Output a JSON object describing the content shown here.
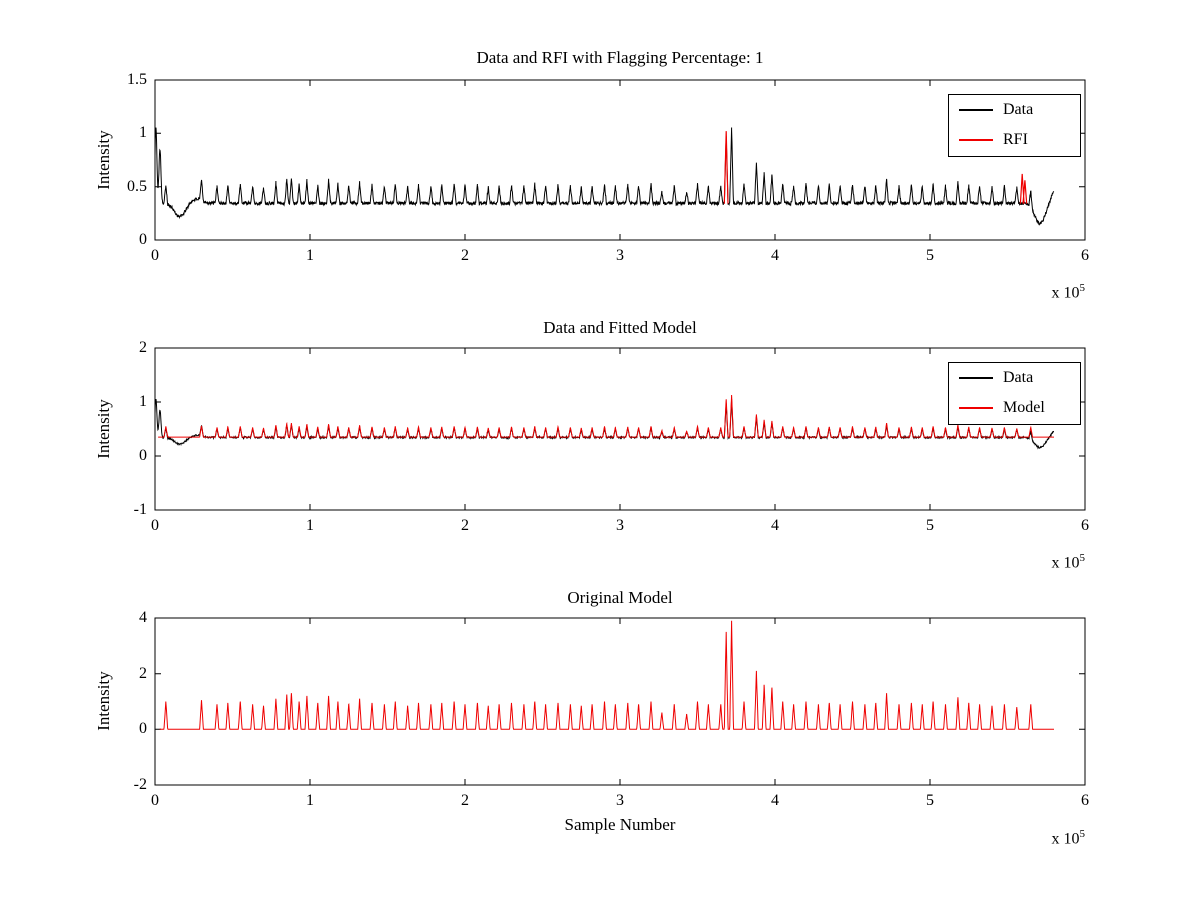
{
  "figure": {
    "background": "#ffffff"
  },
  "chart_data": {
    "type": "line",
    "layout": "3 stacked subplots sharing x axis, MATLAB-style figure",
    "x_range": [
      0,
      6
    ],
    "x_tick_values": [
      0,
      1,
      2,
      3,
      4,
      5,
      6
    ],
    "x_tick_labels": [
      "0",
      "1",
      "2",
      "3",
      "4",
      "5",
      "6"
    ],
    "exponent_prefix": "x 10",
    "exponent": "5",
    "x_data_end": 5.8,
    "colors": {
      "data": "#000000",
      "rfi": "#ef0000",
      "model": "#ef0000",
      "axis": "#000000"
    },
    "spike_half_width": 0.012,
    "model_spikes": [
      [
        0.07,
        1.0
      ],
      [
        0.3,
        1.05
      ],
      [
        0.4,
        0.9
      ],
      [
        0.47,
        0.95
      ],
      [
        0.55,
        1.0
      ],
      [
        0.63,
        0.9
      ],
      [
        0.7,
        0.85
      ],
      [
        0.78,
        1.1
      ],
      [
        0.85,
        1.25
      ],
      [
        0.88,
        1.3
      ],
      [
        0.93,
        1.0
      ],
      [
        0.98,
        1.2
      ],
      [
        1.05,
        0.95
      ],
      [
        1.12,
        1.2
      ],
      [
        1.18,
        1.0
      ],
      [
        1.25,
        0.9
      ],
      [
        1.32,
        1.1
      ],
      [
        1.4,
        0.95
      ],
      [
        1.48,
        0.9
      ],
      [
        1.55,
        1.0
      ],
      [
        1.63,
        0.85
      ],
      [
        1.7,
        0.95
      ],
      [
        1.78,
        0.9
      ],
      [
        1.85,
        0.95
      ],
      [
        1.93,
        1.0
      ],
      [
        2.0,
        0.9
      ],
      [
        2.08,
        0.95
      ],
      [
        2.15,
        0.85
      ],
      [
        2.22,
        0.9
      ],
      [
        2.3,
        0.95
      ],
      [
        2.38,
        0.9
      ],
      [
        2.45,
        1.0
      ],
      [
        2.52,
        0.9
      ],
      [
        2.6,
        0.95
      ],
      [
        2.68,
        0.9
      ],
      [
        2.75,
        0.85
      ],
      [
        2.82,
        0.9
      ],
      [
        2.9,
        1.0
      ],
      [
        2.97,
        0.9
      ],
      [
        3.05,
        0.95
      ],
      [
        3.12,
        0.9
      ],
      [
        3.2,
        1.0
      ],
      [
        3.27,
        0.6
      ],
      [
        3.35,
        0.9
      ],
      [
        3.43,
        0.55
      ],
      [
        3.5,
        1.0
      ],
      [
        3.57,
        0.9
      ],
      [
        3.65,
        0.9
      ],
      [
        3.685,
        3.5
      ],
      [
        3.72,
        3.9
      ],
      [
        3.8,
        1.0
      ],
      [
        3.88,
        2.1
      ],
      [
        3.93,
        1.6
      ],
      [
        3.98,
        1.5
      ],
      [
        4.05,
        1.0
      ],
      [
        4.12,
        0.9
      ],
      [
        4.2,
        1.0
      ],
      [
        4.28,
        0.9
      ],
      [
        4.35,
        0.95
      ],
      [
        4.42,
        0.9
      ],
      [
        4.5,
        1.0
      ],
      [
        4.58,
        0.9
      ],
      [
        4.65,
        0.95
      ],
      [
        4.72,
        1.3
      ],
      [
        4.8,
        0.9
      ],
      [
        4.88,
        0.95
      ],
      [
        4.95,
        0.9
      ],
      [
        5.02,
        1.0
      ],
      [
        5.1,
        0.9
      ],
      [
        5.18,
        1.15
      ],
      [
        5.25,
        0.95
      ],
      [
        5.32,
        0.9
      ],
      [
        5.4,
        0.85
      ],
      [
        5.48,
        0.9
      ],
      [
        5.56,
        0.8
      ],
      [
        5.65,
        0.9
      ]
    ],
    "rfi_spikes": [
      [
        3.685,
        1.02
      ],
      [
        5.595,
        0.62
      ],
      [
        5.612,
        0.56
      ]
    ],
    "data_trace": {
      "baseline": 0.345,
      "noise": 0.015,
      "spike_scale": 0.18,
      "start_transient": {
        "peaks": [
          [
            0.006,
            1.05
          ],
          [
            0.032,
            0.86
          ]
        ],
        "dip_center": 0.16,
        "dip_depth": 0.125
      },
      "end_transient": {
        "dip_center": 5.71,
        "dip_depth": 0.19,
        "rise_center": 5.82,
        "rise_amp": 0.14
      }
    },
    "fitted_model": {
      "baseline": 0.35,
      "spike_scale": 0.2
    },
    "original_model": {
      "baseline": 0.0,
      "spike_scale": 1.0
    },
    "charts": [
      {
        "title": "Data and RFI with Flagging Percentage: 1",
        "ylabel": "Intensity",
        "ylim": [
          0,
          1.5
        ],
        "y_tick_values": [
          0,
          0.5,
          1,
          1.5
        ],
        "y_tick_labels": [
          "0",
          "0.5",
          "1",
          "1.5"
        ],
        "legend": [
          {
            "label": "Data",
            "color": "#000000"
          },
          {
            "label": "RFI",
            "color": "#ef0000"
          }
        ],
        "series": [
          "data",
          "rfi"
        ]
      },
      {
        "title": "Data and Fitted Model",
        "ylabel": "Intensity",
        "ylim": [
          -1,
          2
        ],
        "y_tick_values": [
          -1,
          0,
          1,
          2
        ],
        "y_tick_labels": [
          "-1",
          "0",
          "1",
          "2"
        ],
        "legend": [
          {
            "label": "Data",
            "color": "#000000"
          },
          {
            "label": "Model",
            "color": "#ef0000"
          }
        ],
        "series": [
          "data",
          "model"
        ]
      },
      {
        "title": "Original Model",
        "ylabel": "Intensity",
        "xlabel": "Sample Number",
        "ylim": [
          -2,
          4
        ],
        "y_tick_values": [
          -2,
          0,
          2,
          4
        ],
        "y_tick_labels": [
          "-2",
          "0",
          "2",
          "4"
        ],
        "legend": [],
        "series": [
          "original_model"
        ]
      }
    ]
  }
}
